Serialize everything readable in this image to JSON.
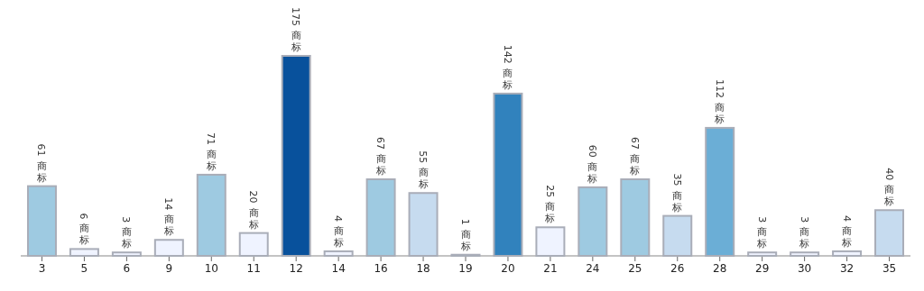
{
  "chart_data": {
    "type": "bar",
    "categories": [
      "3",
      "5",
      "6",
      "9",
      "10",
      "11",
      "12",
      "14",
      "16",
      "18",
      "19",
      "20",
      "21",
      "24",
      "25",
      "26",
      "28",
      "29",
      "30",
      "32",
      "35"
    ],
    "values": [
      61,
      6,
      3,
      14,
      71,
      20,
      175,
      4,
      67,
      55,
      1,
      142,
      25,
      60,
      67,
      35,
      112,
      3,
      3,
      4,
      40
    ],
    "colors": [
      "#9ecae1",
      "#eff3ff",
      "#eff3ff",
      "#eff3ff",
      "#9ecae1",
      "#eff3ff",
      "#08519c",
      "#eff3ff",
      "#9ecae1",
      "#c6dbef",
      "#eff3ff",
      "#3182bd",
      "#eff3ff",
      "#9ecae1",
      "#9ecae1",
      "#c6dbef",
      "#6baed6",
      "#eff3ff",
      "#eff3ff",
      "#eff3ff",
      "#c6dbef"
    ],
    "value_labels": [
      "61 商标",
      "6 商标",
      "3 商标",
      "14 商标",
      "71 商标",
      "20 商标",
      "175 商标",
      "4 商标",
      "67 商标",
      "55 商标",
      "1 商标",
      "142 商标",
      "25 商标",
      "60 商标",
      "67 商标",
      "35 商标",
      "112 商标",
      "3 商标",
      "3 商标",
      "4 商标",
      "40 商标"
    ]
  }
}
